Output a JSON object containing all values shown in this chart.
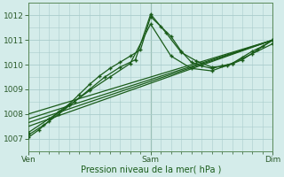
{
  "xlabel": "Pression niveau de la mer( hPa )",
  "ylim": [
    1006.5,
    1012.5
  ],
  "xlim": [
    0,
    48
  ],
  "yticks": [
    1007,
    1008,
    1009,
    1010,
    1011,
    1012
  ],
  "xtick_positions": [
    0,
    24,
    48
  ],
  "xtick_labels": [
    "Ven",
    "Sam",
    "Dim"
  ],
  "bg_color": "#d4ecea",
  "grid_color": "#aacccc",
  "line_color": "#1a5c1a",
  "lines": [
    {
      "x": [
        0,
        2,
        4,
        6,
        8,
        10,
        12,
        14,
        16,
        18,
        20,
        22,
        24,
        26,
        28,
        30,
        32,
        34,
        36,
        38,
        40,
        42,
        44,
        46,
        48
      ],
      "y": [
        1007.05,
        1007.35,
        1007.7,
        1008.1,
        1008.4,
        1008.8,
        1009.2,
        1009.55,
        1009.85,
        1010.1,
        1010.35,
        1010.6,
        1011.95,
        1011.55,
        1011.15,
        1010.55,
        1010.1,
        1009.95,
        1009.85,
        1009.95,
        1010.05,
        1010.3,
        1010.55,
        1010.75,
        1011.0
      ],
      "marker": "+"
    },
    {
      "x": [
        0,
        3,
        6,
        9,
        12,
        15,
        18,
        21,
        24,
        27,
        30,
        33,
        36,
        39,
        42,
        45,
        48
      ],
      "y": [
        1007.15,
        1007.55,
        1008.0,
        1008.5,
        1009.0,
        1009.5,
        1009.9,
        1010.2,
        1012.05,
        1011.3,
        1010.5,
        1010.15,
        1009.9,
        1009.95,
        1010.2,
        1010.6,
        1011.0
      ],
      "marker": "+"
    },
    {
      "x": [
        0,
        4,
        8,
        12,
        16,
        20,
        24,
        28,
        32,
        36,
        40,
        44,
        48
      ],
      "y": [
        1007.25,
        1007.8,
        1008.35,
        1008.95,
        1009.5,
        1010.05,
        1011.65,
        1010.35,
        1009.85,
        1009.75,
        1010.05,
        1010.45,
        1010.85
      ],
      "marker": "+"
    },
    {
      "x": [
        0,
        48
      ],
      "y": [
        1007.5,
        1011.0
      ],
      "marker": null
    },
    {
      "x": [
        0,
        48
      ],
      "y": [
        1007.65,
        1011.0
      ],
      "marker": null
    },
    {
      "x": [
        0,
        48
      ],
      "y": [
        1007.8,
        1011.0
      ],
      "marker": null
    },
    {
      "x": [
        0,
        48
      ],
      "y": [
        1008.0,
        1011.0
      ],
      "marker": null
    }
  ]
}
